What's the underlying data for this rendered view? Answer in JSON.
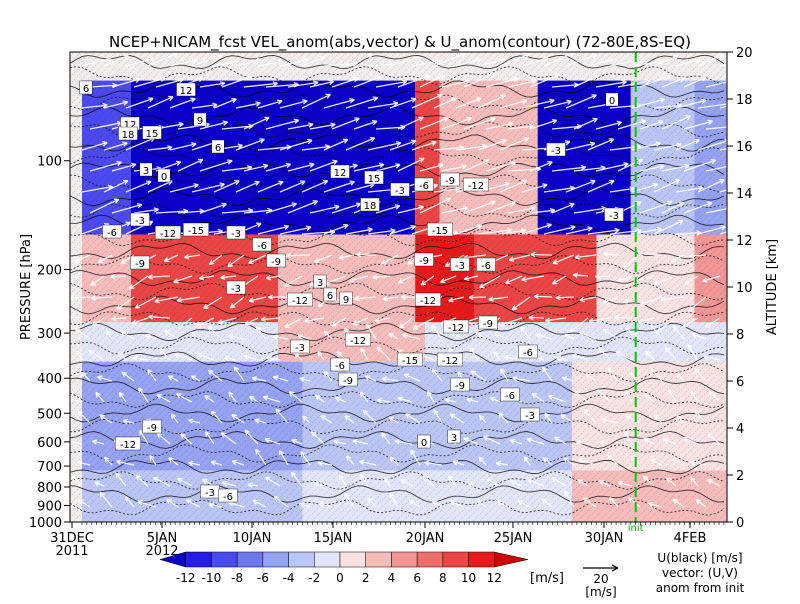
{
  "chart_data": {
    "type": "heatmap",
    "title": "NCEP+NICAM_fcst VEL_anom(abs,vector) & U_anom(contour)   (72-80E,8S-EQ)",
    "ylabel": "PRESSURE [hPa]",
    "y2label": "ALTITUDE [km]",
    "x_ticks": [
      "31DEC",
      "5JAN",
      "10JAN",
      "15JAN",
      "20JAN",
      "25JAN",
      "30JAN",
      "4FEB"
    ],
    "x_year": "2011",
    "x_year2": "2012",
    "y_ticks": [
      "100",
      "200",
      "300",
      "400",
      "500",
      "600",
      "700",
      "800",
      "900",
      "1000"
    ],
    "y_scale": "log",
    "ylim": [
      1000,
      50
    ],
    "altitude_ticks": [
      "0",
      "2",
      "4",
      "6",
      "8",
      "10",
      "12",
      "14",
      "16",
      "18",
      "20"
    ],
    "altitude_range_km": [
      0,
      20
    ],
    "forecast_marker_label": "init",
    "colorbar": {
      "labels": [
        "-12",
        "-10",
        "-8",
        "-6",
        "-4",
        "-2",
        "0",
        "2",
        "4",
        "6",
        "8",
        "10",
        "12"
      ],
      "unit": "[m/s]",
      "colors": [
        "#0a00c8",
        "#2a1ae6",
        "#4a4aee",
        "#6e78ee",
        "#96a2f2",
        "#bcc6f6",
        "#e2e6fa",
        "#fae2e2",
        "#f6bcbc",
        "#f29696",
        "#ee6e6e",
        "#ea4646",
        "#e61a1a",
        "#d00000"
      ]
    },
    "vector_ref": {
      "value": "20",
      "unit": "[m/s]"
    },
    "legend_notes": [
      "U(black) [m/s]",
      "vector: (U,V)",
      "anom from init"
    ],
    "contour_labels": [
      "6",
      "12",
      "18",
      "15",
      "12",
      "9",
      "6",
      "3",
      "0",
      "-3",
      "-6",
      "-9",
      "-12",
      "-15",
      "-3",
      "-6",
      "-9",
      "-12",
      "3",
      "6",
      "9",
      "12",
      "15",
      "18",
      "-3",
      "-6",
      "-9",
      "-12",
      "-15",
      "-3",
      "-6",
      "-9",
      "-12",
      "-12",
      "-9",
      "-6",
      "-3",
      "-3",
      "-6",
      "-9",
      "-12",
      "-15",
      "-12",
      "-9",
      "-6",
      "-3",
      "0",
      "3",
      "-3",
      "-6",
      "-9",
      "-12",
      "-3",
      "0",
      "-3"
    ],
    "field": {
      "bands": [
        {
          "levels": [
            60,
            160
          ],
          "segments": [
            [
              0,
              10,
              -10
            ],
            [
              10,
              68,
              -13
            ],
            [
              68,
              73,
              8
            ],
            [
              73,
              93,
              3
            ],
            [
              93,
              112,
              -13
            ],
            [
              112,
              125,
              -4
            ],
            [
              125,
              140,
              -6
            ]
          ]
        },
        {
          "levels": [
            160,
            280
          ],
          "segments": [
            [
              0,
              10,
              2
            ],
            [
              10,
              40,
              9
            ],
            [
              40,
              68,
              3
            ],
            [
              68,
              80,
              10
            ],
            [
              80,
              105,
              8
            ],
            [
              105,
              125,
              1
            ],
            [
              125,
              140,
              5
            ]
          ]
        },
        {
          "levels": [
            280,
            360
          ],
          "segments": [
            [
              0,
              40,
              -1
            ],
            [
              40,
              70,
              2
            ],
            [
              70,
              100,
              -2
            ],
            [
              100,
              140,
              -1
            ]
          ]
        },
        {
          "levels": [
            360,
            720
          ],
          "segments": [
            [
              0,
              45,
              -5
            ],
            [
              45,
              70,
              -3
            ],
            [
              70,
              100,
              -4
            ],
            [
              100,
              140,
              1
            ]
          ]
        },
        {
          "levels": [
            720,
            1000
          ],
          "segments": [
            [
              0,
              45,
              -4
            ],
            [
              45,
              70,
              -2
            ],
            [
              70,
              100,
              -1
            ],
            [
              100,
              140,
              2
            ]
          ]
        }
      ],
      "forecast_day": 113
    }
  }
}
